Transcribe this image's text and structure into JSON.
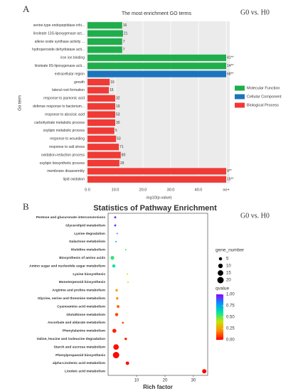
{
  "chart_data": [
    {
      "type": "hbar",
      "panel_label": "A",
      "title": "The most enrichment GO terms",
      "annotation": "G0 vs. H0",
      "xlabel": "-log10(p-value)",
      "ylabel": "Go term",
      "categories": [
        "serine-type endopeptidase inhi...",
        "linoleate 13S-lipoxygenase act...",
        "allene oxide synthase activity ...",
        "hydroperoxide dehydratase acti...",
        "iron ion binding",
        "linoleate 9S-lipoxygenase acti...",
        "extracellular region",
        "growth",
        "lateral root formation",
        "response to jasmonic acid",
        "defense response to bacterium...",
        "response to abscisic acid",
        "carbohydrate metabolic process",
        "oxylipin metabolic process",
        "response to wounding",
        "response to salt stress",
        "oxidation-reduction process",
        "oxylipin biosynthetic process",
        "membrane disassembly",
        "lipid oxidation"
      ],
      "series": [
        {
          "name": "Molecular Function",
          "color": "#1fae4b",
          "values": [
            12.5,
            12.8,
            12.5,
            12.5,
            50,
            50,
            null,
            null,
            null,
            null,
            null,
            null,
            null,
            null,
            null,
            null,
            null,
            null,
            null,
            null
          ],
          "value_labels": [
            "16",
            "21",
            "7",
            "7",
            "41**",
            "14**",
            null,
            null,
            null,
            null,
            null,
            null,
            null,
            null,
            null,
            null,
            null,
            null,
            null,
            null
          ]
        },
        {
          "name": "Cellular Component",
          "color": "#1b75bb",
          "values": [
            null,
            null,
            null,
            null,
            null,
            null,
            50,
            null,
            null,
            null,
            null,
            null,
            null,
            null,
            null,
            null,
            null,
            null,
            null,
            null
          ],
          "value_labels": [
            null,
            null,
            null,
            null,
            null,
            null,
            "68**",
            null,
            null,
            null,
            null,
            null,
            null,
            null,
            null,
            null,
            null,
            null,
            null,
            null
          ]
        },
        {
          "name": "Biological Process",
          "color": "#f03a35",
          "values": [
            null,
            null,
            null,
            null,
            null,
            null,
            null,
            8,
            7.7,
            10,
            10,
            10,
            10,
            9.7,
            10.3,
            11.3,
            12,
            11.5,
            50,
            50
          ],
          "value_labels": [
            null,
            null,
            null,
            null,
            null,
            null,
            null,
            "16",
            "15",
            "32",
            "19",
            "53",
            "30",
            "5",
            "53",
            "71",
            "80",
            "29",
            "9**",
            "15**"
          ]
        }
      ],
      "xlim": [
        0,
        50
      ],
      "xticks": [
        {
          "value": 0,
          "label": "0.0"
        },
        {
          "value": 10,
          "label": "10.0"
        },
        {
          "value": 20,
          "label": "20.0"
        },
        {
          "value": 30,
          "label": "30.0"
        },
        {
          "value": 40,
          "label": "40.0"
        },
        {
          "value": 50,
          "label": "oo+"
        }
      ],
      "grid": true
    },
    {
      "type": "bubble",
      "panel_label": "B",
      "title": "Statistics of Pathway Enrichment",
      "annotation": "G0 vs. H0",
      "xlabel": "Rich factor",
      "categories": [
        "Pentose and glucuronate interconversions",
        "Glycerolipid metabolism",
        "Lysine degradation",
        "Galactose metabolism",
        "Histidine metabolism",
        "Biosynthesis of amino acids",
        "Amino sugar and nucleotide sugar metabolism",
        "Lysine biosynthesis",
        "Monoterpenoid biosynthesis",
        "Arginine and proline metabolism",
        "Glycine, serine and threonine metabolism",
        "Cyanoamino acid metabolism",
        "Glutathione metabolism",
        "Ascorbate and aldarate metabolism",
        "Phenylalanine metabolism",
        "Valine, leucine and isoleucine degradation",
        "Starch and sucrose metabolism",
        "Phenylpropanoid biosynthesis",
        "alpha-Linolenic acid metabolism",
        "Linoleic acid metabolism"
      ],
      "x": [
        2.5,
        2.5,
        3.2,
        2.8,
        6.2,
        1.5,
        2,
        6.8,
        7,
        3,
        3.2,
        3.5,
        3,
        5.2,
        2.2,
        6.2,
        2.8,
        2.8,
        6.8,
        33.8
      ],
      "sizes": [
        2,
        2,
        1,
        1,
        1,
        7,
        5,
        1,
        1,
        3,
        3,
        4,
        5,
        2,
        8,
        3,
        15,
        20,
        6,
        9
      ],
      "qvalues": [
        0.95,
        0.9,
        0.8,
        0.75,
        0.55,
        0.55,
        0.6,
        0.4,
        0.35,
        0.25,
        0.22,
        0.15,
        0.1,
        0.12,
        0.05,
        0.05,
        0.02,
        0.01,
        0.02,
        0
      ],
      "xlim": [
        0,
        35
      ],
      "xticks": [
        10,
        20,
        30
      ],
      "size_legend": {
        "title": "gene_number",
        "ticks": [
          5,
          10,
          15,
          20
        ]
      },
      "color_legend": {
        "title": "qvalue",
        "lim": [
          0,
          1
        ],
        "ticks": [
          {
            "value": 0,
            "label": "0.00"
          },
          {
            "value": 0.25,
            "label": "0.25"
          },
          {
            "value": 0.5,
            "label": "0.50"
          },
          {
            "value": 0.75,
            "label": "0.75"
          },
          {
            "value": 1,
            "label": "1.00"
          }
        ],
        "colors": [
          "#ff0000",
          "#ff8c00",
          "#c8e600",
          "#00e6a0",
          "#0096ff",
          "#9600ff"
        ]
      }
    }
  ]
}
